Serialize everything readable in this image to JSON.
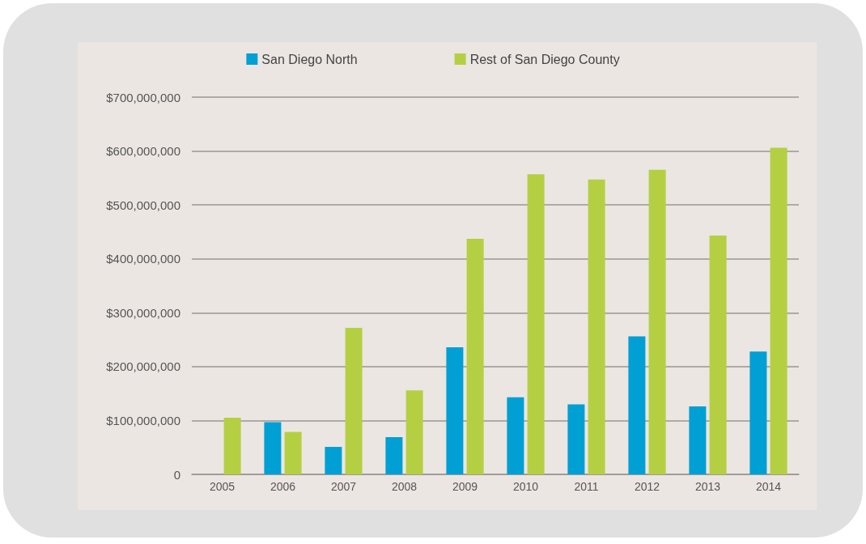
{
  "chart_data": {
    "type": "bar",
    "categories": [
      "2005",
      "2006",
      "2007",
      "2008",
      "2009",
      "2010",
      "2011",
      "2012",
      "2013",
      "2014"
    ],
    "series": [
      {
        "name": "San Diego North",
        "color": "#009fd4",
        "values": [
          null,
          97000000,
          51000000,
          69000000,
          236000000,
          143000000,
          130000000,
          256000000,
          126000000,
          228000000
        ]
      },
      {
        "name": "Rest of San Diego County",
        "color": "#b5cf43",
        "values": [
          105000000,
          79000000,
          272000000,
          156000000,
          437000000,
          557000000,
          547000000,
          565000000,
          443000000,
          606000000
        ]
      }
    ],
    "ylim": [
      0,
      700000000
    ],
    "yticks": [
      0,
      {
        "value": 100000000,
        "label": "$100,000,000"
      },
      {
        "value": 200000000,
        "label": "$200,000,000"
      },
      {
        "value": 300000000,
        "label": "$300,000,000"
      },
      {
        "value": 400000000,
        "label": "$400,000,000"
      },
      {
        "value": 500000000,
        "label": "$500,000,000"
      },
      {
        "value": 600000000,
        "label": "$600,000,000"
      },
      {
        "value": 700000000,
        "label": "$700,000,000"
      }
    ],
    "grid": "y",
    "legend": "top"
  }
}
